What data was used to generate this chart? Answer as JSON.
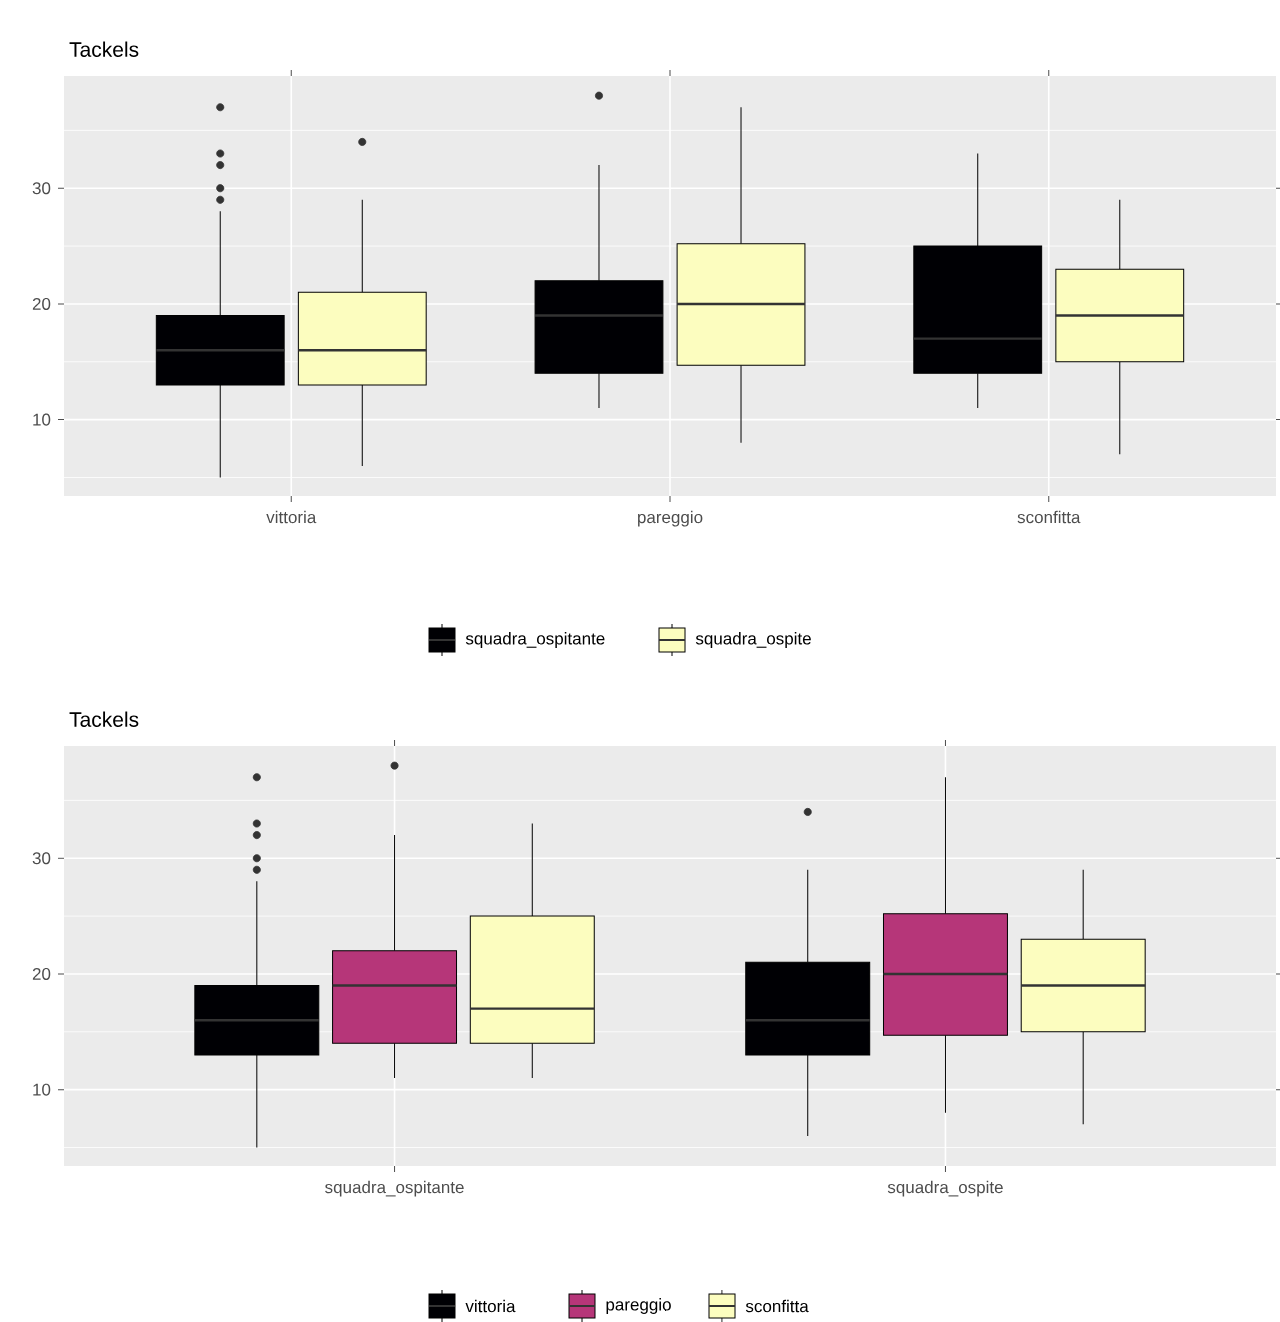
{
  "chart_data": [
    {
      "type": "box",
      "title": "Tackels",
      "categories": [
        "vittoria",
        "pareggio",
        "sconfitta"
      ],
      "ylim": [
        3.4,
        39.7
      ],
      "yticks": [
        10,
        20,
        30
      ],
      "grid": true,
      "legend": "bottom",
      "series": [
        {
          "name": "squadra_ospitante",
          "color": "#000004",
          "boxes": [
            {
              "low": 5,
              "q1": 13,
              "median": 16,
              "q3": 19,
              "high": 28,
              "outliers": [
                29,
                30,
                32,
                33,
                37
              ]
            },
            {
              "low": 11,
              "q1": 14,
              "median": 19,
              "q3": 22,
              "high": 32,
              "outliers": [
                38
              ]
            },
            {
              "low": 11,
              "q1": 14,
              "median": 17,
              "q3": 25,
              "high": 33
            }
          ]
        },
        {
          "name": "squadra_ospite",
          "color": "#fcfdbf",
          "boxes": [
            {
              "low": 6,
              "q1": 13,
              "median": 16,
              "q3": 21,
              "high": 29,
              "outliers": [
                34
              ]
            },
            {
              "low": 8,
              "q1": 14.7,
              "median": 20,
              "q3": 25.2,
              "high": 37
            },
            {
              "low": 7,
              "q1": 15,
              "median": 19,
              "q3": 23,
              "high": 29
            }
          ]
        }
      ]
    },
    {
      "type": "box",
      "title": "Tackels",
      "categories": [
        "squadra_ospitante",
        "squadra_ospite"
      ],
      "ylim": [
        3.4,
        39.7
      ],
      "yticks": [
        10,
        20,
        30
      ],
      "grid": true,
      "legend": "bottom",
      "series": [
        {
          "name": "vittoria",
          "color": "#000004",
          "boxes": [
            {
              "low": 5,
              "q1": 13,
              "median": 16,
              "q3": 19,
              "high": 28,
              "outliers": [
                29,
                30,
                32,
                33,
                37
              ]
            },
            {
              "low": 6,
              "q1": 13,
              "median": 16,
              "q3": 21,
              "high": 29,
              "outliers": [
                34
              ]
            }
          ]
        },
        {
          "name": "pareggio",
          "color": "#b63679",
          "boxes": [
            {
              "low": 11,
              "q1": 14,
              "median": 19,
              "q3": 22,
              "high": 32,
              "outliers": [
                38
              ]
            },
            {
              "low": 8,
              "q1": 14.7,
              "median": 20,
              "q3": 25.2,
              "high": 37
            }
          ]
        },
        {
          "name": "sconfitta",
          "color": "#fcfdbf",
          "boxes": [
            {
              "low": 11,
              "q1": 14,
              "median": 17,
              "q3": 25,
              "high": 33
            },
            {
              "low": 7,
              "q1": 15,
              "median": 19,
              "q3": 23,
              "high": 29
            }
          ]
        }
      ]
    }
  ]
}
